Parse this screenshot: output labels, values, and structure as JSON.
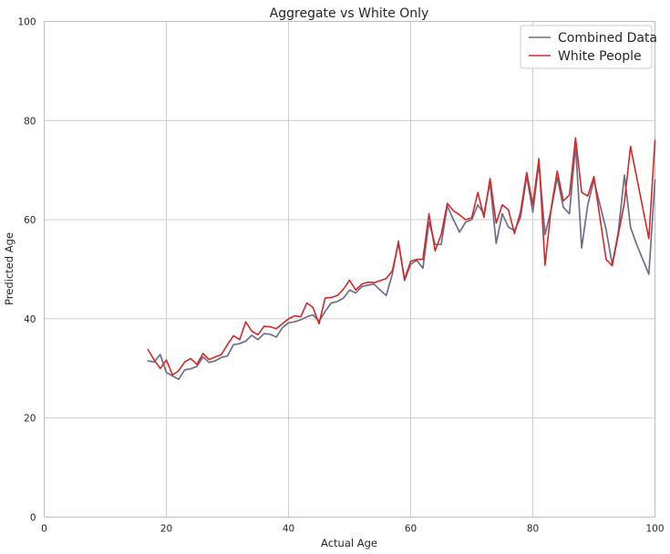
{
  "chart_data": {
    "type": "line",
    "title": "Aggregate vs White Only",
    "xlabel": "Actual Age",
    "ylabel": "Predicted Age",
    "xlim": [
      0,
      100
    ],
    "ylim": [
      0,
      100
    ],
    "xticks": [
      0,
      20,
      40,
      60,
      80,
      100
    ],
    "yticks": [
      0,
      20,
      40,
      60,
      80,
      100
    ],
    "grid": true,
    "legend_position": "top-right",
    "series": [
      {
        "name": "Combined Data",
        "color": "#6b6f8a",
        "x": [
          17,
          18,
          19,
          20,
          21,
          22,
          23,
          24,
          25,
          26,
          27,
          28,
          29,
          30,
          31,
          32,
          33,
          34,
          35,
          36,
          37,
          38,
          39,
          40,
          41,
          42,
          43,
          44,
          45,
          46,
          47,
          48,
          49,
          50,
          51,
          52,
          53,
          54,
          55,
          56,
          57,
          58,
          59,
          60,
          61,
          62,
          63,
          64,
          65,
          66,
          67,
          68,
          69,
          70,
          71,
          72,
          73,
          74,
          75,
          76,
          77,
          78,
          79,
          80,
          81,
          82,
          83,
          84,
          85,
          86,
          87,
          88,
          89,
          90,
          91,
          92,
          93,
          94,
          95,
          96,
          97,
          98,
          99,
          100
        ],
        "values": [
          31.5,
          31.3,
          32.8,
          29.2,
          28.5,
          27.8,
          29.7,
          29.9,
          30.4,
          32.3,
          31.2,
          31.5,
          32.2,
          32.5,
          34.8,
          35.0,
          35.5,
          36.7,
          35.8,
          37.0,
          36.9,
          36.3,
          38.2,
          39.2,
          39.4,
          39.8,
          40.4,
          40.8,
          39.5,
          41.5,
          43.2,
          43.5,
          44.2,
          45.8,
          45.2,
          46.5,
          46.8,
          47.0,
          45.8,
          44.7,
          49.0,
          55.7,
          47.7,
          51.0,
          51.8,
          50.2,
          59.5,
          55.0,
          55.0,
          62.8,
          60.0,
          57.5,
          59.5,
          60.0,
          63.0,
          61.2,
          67.5,
          55.2,
          61.2,
          58.5,
          57.8,
          60.5,
          68.8,
          61.5,
          71.5,
          57.0,
          62.0,
          68.5,
          62.5,
          61.2,
          75.0,
          54.3,
          63.0,
          68.0,
          63.0,
          58.0,
          51.0,
          57.5,
          69.0,
          58.5,
          55.0,
          52.0,
          49.0,
          68.0
        ]
      },
      {
        "name": "White People",
        "color": "#d62728",
        "x": [
          17,
          18,
          19,
          20,
          21,
          22,
          23,
          24,
          25,
          26,
          27,
          28,
          29,
          30,
          31,
          32,
          33,
          34,
          35,
          36,
          37,
          38,
          39,
          40,
          41,
          42,
          43,
          44,
          45,
          46,
          47,
          48,
          49,
          50,
          51,
          52,
          53,
          54,
          55,
          56,
          57,
          58,
          59,
          60,
          61,
          62,
          63,
          64,
          65,
          66,
          67,
          68,
          69,
          70,
          71,
          72,
          73,
          74,
          75,
          76,
          77,
          78,
          79,
          80,
          81,
          82,
          83,
          84,
          85,
          86,
          87,
          88,
          89,
          90,
          92,
          93,
          94,
          95,
          96,
          99,
          100
        ],
        "values": [
          33.8,
          31.7,
          30.0,
          31.7,
          28.7,
          29.5,
          31.3,
          32.0,
          30.8,
          33.0,
          31.8,
          32.3,
          32.8,
          34.8,
          36.6,
          35.8,
          39.4,
          37.5,
          36.8,
          38.5,
          38.4,
          38.0,
          39.0,
          40.0,
          40.6,
          40.4,
          43.2,
          42.3,
          39.0,
          44.2,
          44.3,
          44.7,
          46.0,
          47.8,
          45.8,
          47.0,
          47.4,
          47.3,
          47.7,
          48.1,
          49.7,
          55.3,
          48.0,
          51.6,
          52.0,
          52.0,
          61.2,
          53.7,
          57.0,
          63.3,
          61.8,
          61.0,
          60.0,
          60.4,
          65.5,
          60.5,
          68.3,
          59.3,
          63.0,
          62.0,
          57.2,
          61.7,
          69.5,
          63.0,
          72.3,
          50.8,
          62.3,
          69.8,
          63.8,
          65.0,
          76.5,
          65.5,
          64.8,
          68.7,
          52.0,
          50.7,
          57.0,
          63.5,
          74.8,
          56.2,
          76.0
        ]
      }
    ]
  }
}
